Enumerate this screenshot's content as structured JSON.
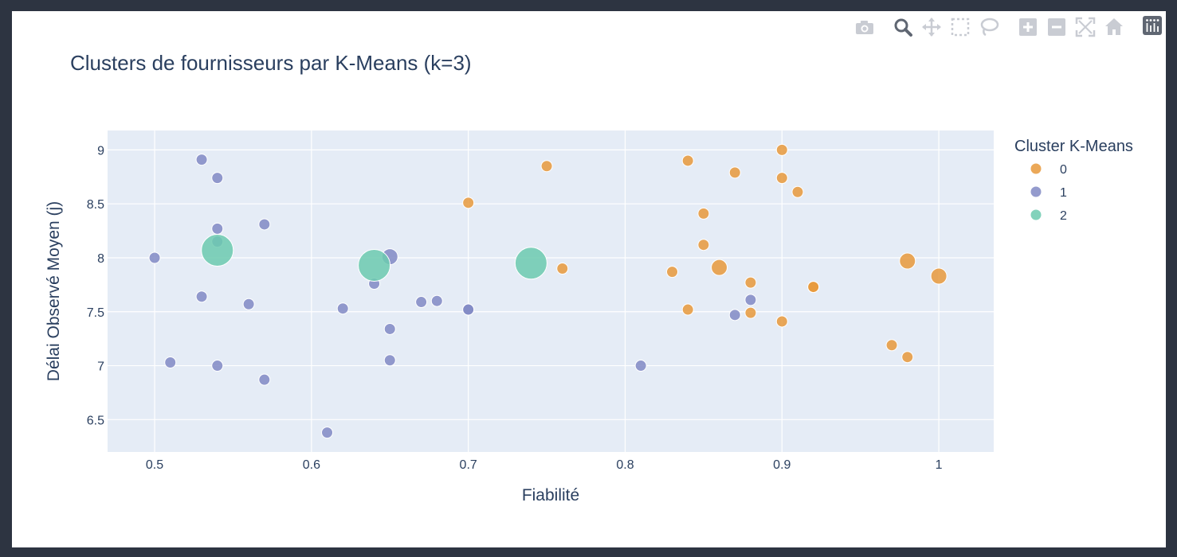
{
  "modebar": {
    "buttons": [
      "camera-icon",
      "zoom-icon",
      "pan-icon",
      "box-select-icon",
      "lasso-select-icon",
      "zoom-in-icon",
      "zoom-out-icon",
      "autoscale-icon",
      "reset-axes-icon",
      "plotly-logo-icon"
    ]
  },
  "colors": {
    "page_bg": "#2d3441",
    "plot_bg": "#e5ecf6",
    "grid": "#ffffff",
    "text": "#2a3f5f",
    "cluster_0": "#e8993b",
    "cluster_1": "#8189c4",
    "cluster_2": "#6ccaaf"
  },
  "chart_data": {
    "type": "scatter",
    "title": "Clusters de fournisseurs par K-Means (k=3)",
    "xlabel": "Fiabilité",
    "ylabel": "Délai Observé Moyen (j)",
    "xlim": [
      0.47,
      1.035
    ],
    "ylim": [
      6.2,
      9.18
    ],
    "xticks": [
      0.5,
      0.6,
      0.7,
      0.8,
      0.9,
      1
    ],
    "xtick_labels": [
      "0.5",
      "0.6",
      "0.7",
      "0.8",
      "0.9",
      "1"
    ],
    "yticks": [
      6.5,
      7,
      7.5,
      8,
      8.5,
      9
    ],
    "ytick_labels": [
      "6.5",
      "7",
      "7.5",
      "8",
      "8.5",
      "9"
    ],
    "grid": true,
    "legend_title": "Cluster K-Means",
    "legend_position": "right",
    "series": [
      {
        "name": "0",
        "color": "#e8993b",
        "points": [
          {
            "x": 0.7,
            "y": 8.51,
            "size": 1
          },
          {
            "x": 0.75,
            "y": 8.85,
            "size": 1
          },
          {
            "x": 0.76,
            "y": 7.9,
            "size": 1
          },
          {
            "x": 0.83,
            "y": 7.87,
            "size": 1
          },
          {
            "x": 0.84,
            "y": 8.9,
            "size": 1
          },
          {
            "x": 0.84,
            "y": 7.52,
            "size": 1
          },
          {
            "x": 0.85,
            "y": 8.41,
            "size": 1
          },
          {
            "x": 0.85,
            "y": 8.12,
            "size": 1
          },
          {
            "x": 0.86,
            "y": 7.91,
            "size": 2
          },
          {
            "x": 0.87,
            "y": 8.79,
            "size": 1
          },
          {
            "x": 0.88,
            "y": 7.77,
            "size": 1
          },
          {
            "x": 0.88,
            "y": 7.49,
            "size": 1
          },
          {
            "x": 0.9,
            "y": 9.0,
            "size": 1
          },
          {
            "x": 0.9,
            "y": 8.74,
            "size": 1
          },
          {
            "x": 0.9,
            "y": 7.41,
            "size": 1
          },
          {
            "x": 0.91,
            "y": 8.61,
            "size": 1
          },
          {
            "x": 0.92,
            "y": 7.73,
            "size": 1
          },
          {
            "x": 0.92,
            "y": 7.73,
            "size": 1
          },
          {
            "x": 0.97,
            "y": 7.19,
            "size": 1
          },
          {
            "x": 0.98,
            "y": 7.97,
            "size": 2
          },
          {
            "x": 0.98,
            "y": 7.08,
            "size": 1
          },
          {
            "x": 1.0,
            "y": 7.83,
            "size": 2
          }
        ]
      },
      {
        "name": "1",
        "color": "#8189c4",
        "points": [
          {
            "x": 0.5,
            "y": 8.0,
            "size": 1
          },
          {
            "x": 0.51,
            "y": 7.03,
            "size": 1
          },
          {
            "x": 0.53,
            "y": 8.91,
            "size": 1
          },
          {
            "x": 0.53,
            "y": 7.64,
            "size": 1
          },
          {
            "x": 0.54,
            "y": 8.74,
            "size": 1
          },
          {
            "x": 0.54,
            "y": 8.27,
            "size": 1
          },
          {
            "x": 0.54,
            "y": 8.15,
            "size": 1
          },
          {
            "x": 0.54,
            "y": 7.0,
            "size": 1
          },
          {
            "x": 0.56,
            "y": 7.57,
            "size": 1
          },
          {
            "x": 0.57,
            "y": 8.31,
            "size": 1
          },
          {
            "x": 0.57,
            "y": 6.87,
            "size": 1
          },
          {
            "x": 0.61,
            "y": 6.38,
            "size": 1
          },
          {
            "x": 0.62,
            "y": 7.53,
            "size": 1
          },
          {
            "x": 0.64,
            "y": 7.76,
            "size": 1
          },
          {
            "x": 0.65,
            "y": 8.01,
            "size": 2
          },
          {
            "x": 0.65,
            "y": 7.34,
            "size": 1
          },
          {
            "x": 0.65,
            "y": 7.05,
            "size": 1
          },
          {
            "x": 0.67,
            "y": 7.59,
            "size": 1
          },
          {
            "x": 0.68,
            "y": 7.6,
            "size": 1
          },
          {
            "x": 0.7,
            "y": 7.52,
            "size": 1
          },
          {
            "x": 0.7,
            "y": 7.52,
            "size": 1
          },
          {
            "x": 0.81,
            "y": 7.0,
            "size": 1
          },
          {
            "x": 0.87,
            "y": 7.47,
            "size": 1
          },
          {
            "x": 0.88,
            "y": 7.61,
            "size": 1
          }
        ]
      },
      {
        "name": "2",
        "color": "#6ccaaf",
        "points": [
          {
            "x": 0.54,
            "y": 8.07,
            "size": 4
          },
          {
            "x": 0.64,
            "y": 7.93,
            "size": 4
          },
          {
            "x": 0.74,
            "y": 7.95,
            "size": 4
          }
        ]
      }
    ]
  }
}
